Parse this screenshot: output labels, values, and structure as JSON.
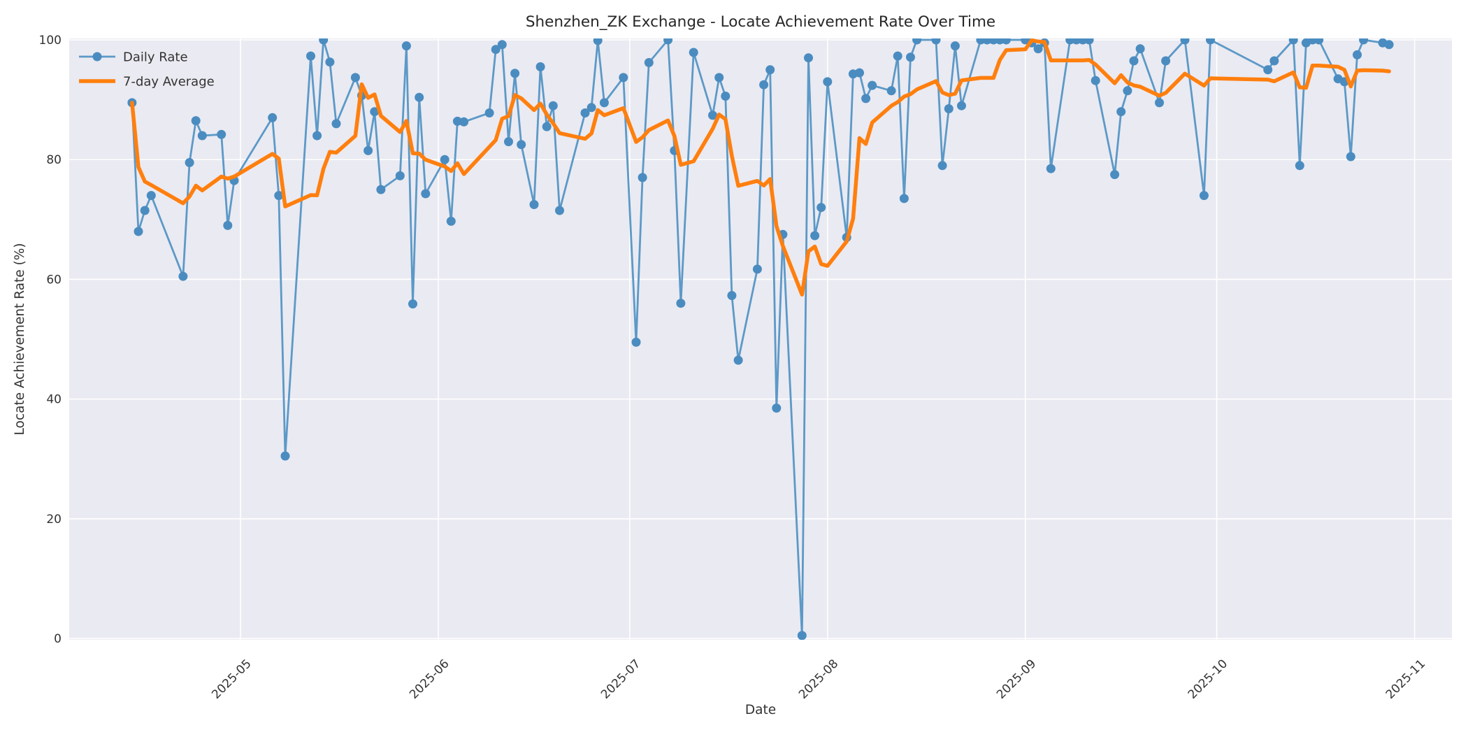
{
  "title": "Shenzhen_ZK Exchange - Locate Achievement Rate Over Time",
  "axes": {
    "x_label": "Date",
    "y_label": "Locate Achievement Rate (%)",
    "x_tick_labels": [
      "2025-05",
      "2025-06",
      "2025-07",
      "2025-08",
      "2025-09",
      "2025-10",
      "2025-11"
    ],
    "y_tick_labels": [
      "0",
      "20",
      "40",
      "60",
      "80",
      "100"
    ]
  },
  "legend": {
    "position": "upper left",
    "items": [
      {
        "label": "Daily Rate",
        "color": "#5c99c7",
        "style": "line-with-marker"
      },
      {
        "label": "7-day Average",
        "color": "#ff7f0e",
        "style": "thick-line"
      }
    ]
  },
  "colors": {
    "figure_bg": "#ffffff",
    "plot_bg": "#eaeaf2",
    "grid": "#ffffff",
    "daily_line": "#5c99c7",
    "daily_marker": "#4a8cc0",
    "avg_line": "#ff7f0e",
    "tick_text": "#333333",
    "title_text": "#262626"
  },
  "chart_data": {
    "type": "line",
    "title": "Shenzhen_ZK Exchange - Locate Achievement Rate Over Time",
    "xlabel": "Date",
    "ylabel": "Locate Achievement Rate (%)",
    "ylim": [
      0,
      100
    ],
    "grid": true,
    "legend_position": "upper left",
    "x_tick_labels": [
      "2025-05",
      "2025-06",
      "2025-07",
      "2025-08",
      "2025-09",
      "2025-10",
      "2025-11"
    ],
    "y_ticks": [
      0,
      20,
      40,
      60,
      80,
      100
    ],
    "series": [
      {
        "name": "Daily Rate",
        "style": "line+markers",
        "dates": [
          "2025-04-14",
          "2025-04-15",
          "2025-04-16",
          "2025-04-17",
          "2025-04-22",
          "2025-04-23",
          "2025-04-24",
          "2025-04-25",
          "2025-04-28",
          "2025-04-29",
          "2025-04-30",
          "2025-05-06",
          "2025-05-07",
          "2025-05-08",
          "2025-05-12",
          "2025-05-13",
          "2025-05-14",
          "2025-05-15",
          "2025-05-16",
          "2025-05-19",
          "2025-05-20",
          "2025-05-21",
          "2025-05-22",
          "2025-05-23",
          "2025-05-26",
          "2025-05-27",
          "2025-05-28",
          "2025-05-29",
          "2025-05-30",
          "2025-06-02",
          "2025-06-03",
          "2025-06-04",
          "2025-06-05",
          "2025-06-09",
          "2025-06-10",
          "2025-06-11",
          "2025-06-12",
          "2025-06-13",
          "2025-06-14",
          "2025-06-16",
          "2025-06-17",
          "2025-06-18",
          "2025-06-19",
          "2025-06-20",
          "2025-06-24",
          "2025-06-25",
          "2025-06-26",
          "2025-06-27",
          "2025-06-30",
          "2025-07-02",
          "2025-07-03",
          "2025-07-04",
          "2025-07-07",
          "2025-07-08",
          "2025-07-09",
          "2025-07-11",
          "2025-07-14",
          "2025-07-15",
          "2025-07-16",
          "2025-07-17",
          "2025-07-18",
          "2025-07-21",
          "2025-07-22",
          "2025-07-23",
          "2025-07-24",
          "2025-07-25",
          "2025-07-28",
          "2025-07-29",
          "2025-07-30",
          "2025-07-31",
          "2025-08-01",
          "2025-08-04",
          "2025-08-05",
          "2025-08-06",
          "2025-08-07",
          "2025-08-08",
          "2025-08-11",
          "2025-08-12",
          "2025-08-13",
          "2025-08-14",
          "2025-08-15",
          "2025-08-18",
          "2025-08-19",
          "2025-08-20",
          "2025-08-21",
          "2025-08-22",
          "2025-08-25",
          "2025-08-26",
          "2025-08-27",
          "2025-08-28",
          "2025-08-29",
          "2025-09-01",
          "2025-09-02",
          "2025-09-03",
          "2025-09-04",
          "2025-09-05",
          "2025-09-08",
          "2025-09-09",
          "2025-09-10",
          "2025-09-11",
          "2025-09-12",
          "2025-09-15",
          "2025-09-16",
          "2025-09-17",
          "2025-09-18",
          "2025-09-19",
          "2025-09-22",
          "2025-09-23",
          "2025-09-26",
          "2025-09-29",
          "2025-09-30",
          "2025-10-09",
          "2025-10-10",
          "2025-10-13",
          "2025-10-14",
          "2025-10-15",
          "2025-10-16",
          "2025-10-17",
          "2025-10-20",
          "2025-10-21",
          "2025-10-22",
          "2025-10-23",
          "2025-10-24",
          "2025-10-27",
          "2025-10-28"
        ],
        "values": [
          89.5,
          68,
          71.5,
          74,
          60.5,
          79.5,
          86.5,
          84,
          84.2,
          69,
          76.5,
          87,
          74,
          30.5,
          97.3,
          84,
          100,
          96.3,
          86,
          93.7,
          90.7,
          81.5,
          88,
          75,
          77.3,
          99,
          55.9,
          90.4,
          74.3,
          80,
          69.7,
          86.4,
          86.3,
          87.8,
          98.4,
          99.2,
          83,
          94.4,
          82.5,
          72.5,
          95.5,
          85.5,
          89,
          71.5,
          87.8,
          88.7,
          99.9,
          89.5,
          93.7,
          49.5,
          77,
          96.2,
          100,
          81.5,
          56,
          97.9,
          87.4,
          93.7,
          90.6,
          57.3,
          46.5,
          61.7,
          92.5,
          95,
          38.5,
          67.5,
          0.5,
          97,
          67.3,
          72,
          93,
          67,
          94.3,
          94.5,
          90.2,
          92.4,
          91.5,
          97.3,
          73.5,
          97.1,
          100,
          100,
          79,
          88.5,
          99,
          89,
          100,
          100,
          100,
          100,
          100,
          100,
          99.5,
          98.5,
          99.5,
          78.5,
          100,
          100,
          100,
          100,
          93.2,
          77.5,
          88,
          91.5,
          96.5,
          98.5,
          89.5,
          96.5,
          100,
          74,
          100,
          95,
          96.5,
          100,
          79,
          99.5,
          100,
          100,
          93.5,
          93,
          80.5,
          97.5,
          100,
          99.5,
          99.2
        ]
      },
      {
        "name": "7-day Average",
        "style": "line",
        "derived_from": "Daily Rate",
        "derivation": "rolling mean of the last 7 observations (min_periods=1); starts at 89.5, dips to ~57.5 on 2025-07-28, ends at ~94.7 on 2025-10-28"
      }
    ]
  }
}
